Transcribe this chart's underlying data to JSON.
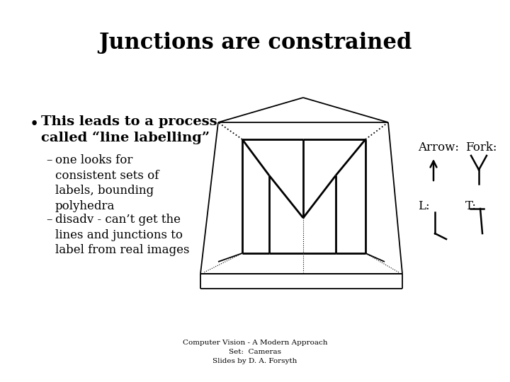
{
  "title": "Junctions are constrained",
  "title_fontsize": 22,
  "background_color": "#ffffff",
  "bullet_text": "This leads to a process\ncalled “line labelling”",
  "sub_bullet_1": "one looks for\nconsistent sets of\nlabels, bounding\npolyhedra",
  "sub_bullet_2": "disadv - can’t get the\nlines and junctions to\nlabel from real images",
  "footer_lines": [
    "Computer Vision - A Modern Approach",
    "Set:  Cameras",
    "Slides by D. A. Forsyth"
  ],
  "arrow_label": "Arrow:",
  "fork_label": "Fork:",
  "l_label": "L:",
  "t_label": "T:",
  "label_fontsize": 12,
  "bullet_fontsize": 14,
  "sub_fontsize": 12,
  "footer_fontsize": 7.5
}
